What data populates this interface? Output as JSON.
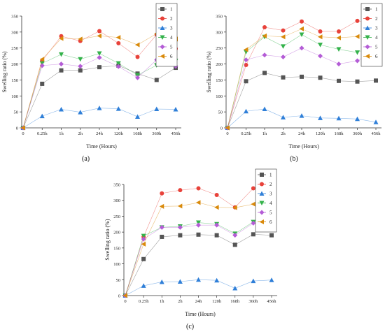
{
  "figure": {
    "x_ticks": [
      "0",
      "0.25h",
      "1h",
      "2h",
      "24h",
      "120h",
      "168h",
      "360h",
      "456h"
    ]
  },
  "chart_data": [
    {
      "type": "line",
      "panel_label": "(a)",
      "xlabel": "Time (Hours)",
      "ylabel": "Swelling ratio (%)",
      "ylim": [
        0,
        350
      ],
      "yticks": [
        0,
        50,
        100,
        150,
        200,
        250,
        300,
        350
      ],
      "categories": [
        "0",
        "0.25h",
        "1h",
        "2h",
        "24h",
        "120h",
        "168h",
        "360h",
        "456h"
      ],
      "grid": false,
      "legend_position": "top-right",
      "series": [
        {
          "name": "1",
          "color": "#555555",
          "marker": "square",
          "values": [
            0,
            138,
            180,
            180,
            190,
            195,
            170,
            150,
            188
          ]
        },
        {
          "name": "2",
          "color": "#e8423a",
          "marker": "circle",
          "values": [
            0,
            210,
            287,
            272,
            303,
            265,
            222,
            292,
            248
          ]
        },
        {
          "name": "3",
          "color": "#2f7fd8",
          "marker": "triangle-up",
          "values": [
            0,
            37,
            58,
            49,
            62,
            60,
            35,
            59,
            58
          ]
        },
        {
          "name": "4",
          "color": "#33b24a",
          "marker": "triangle-down",
          "values": [
            0,
            202,
            230,
            215,
            233,
            202,
            165,
            196,
            210
          ]
        },
        {
          "name": "5",
          "color": "#b45cd6",
          "marker": "diamond",
          "values": [
            0,
            195,
            200,
            193,
            220,
            192,
            157,
            213,
            193
          ]
        },
        {
          "name": "6",
          "color": "#d98a0b",
          "marker": "triangle-left",
          "values": [
            0,
            215,
            280,
            278,
            288,
            283,
            260,
            295,
            278
          ]
        }
      ]
    },
    {
      "type": "line",
      "panel_label": "(b)",
      "xlabel": "Time (Hours)",
      "ylabel": "Swelling ratio (%)",
      "ylim": [
        0,
        350
      ],
      "yticks": [
        0,
        50,
        100,
        150,
        200,
        250,
        300,
        350
      ],
      "categories": [
        "0",
        "0.25h",
        "1h",
        "2h",
        "24h",
        "120h",
        "168h",
        "360h",
        "456h"
      ],
      "grid": false,
      "legend_position": "top-right",
      "series": [
        {
          "name": "1",
          "color": "#555555",
          "marker": "square",
          "values": [
            0,
            146,
            172,
            158,
            160,
            157,
            147,
            145,
            148
          ]
        },
        {
          "name": "2",
          "color": "#e8423a",
          "marker": "circle",
          "values": [
            0,
            197,
            315,
            305,
            333,
            302,
            302,
            335,
            328
          ]
        },
        {
          "name": "3",
          "color": "#2f7fd8",
          "marker": "triangle-up",
          "values": [
            0,
            52,
            59,
            33,
            38,
            31,
            30,
            28,
            18
          ]
        },
        {
          "name": "4",
          "color": "#33b24a",
          "marker": "triangle-down",
          "values": [
            0,
            238,
            285,
            255,
            292,
            260,
            246,
            236,
            263
          ]
        },
        {
          "name": "5",
          "color": "#b45cd6",
          "marker": "diamond",
          "values": [
            0,
            213,
            228,
            222,
            250,
            225,
            200,
            210,
            243
          ]
        },
        {
          "name": "6",
          "color": "#d98a0b",
          "marker": "triangle-left",
          "values": [
            0,
            245,
            288,
            285,
            310,
            285,
            282,
            286,
            298
          ]
        }
      ]
    },
    {
      "type": "line",
      "panel_label": "(c)",
      "xlabel": "Time (Hours)",
      "ylabel": "Swelling ratio (%)",
      "ylim": [
        0,
        350
      ],
      "yticks": [
        0,
        50,
        100,
        150,
        200,
        250,
        300,
        350
      ],
      "categories": [
        "0",
        "0.25h",
        "1h",
        "2h",
        "24h",
        "120h",
        "168h",
        "360h",
        "456h"
      ],
      "grid": false,
      "legend_position": "top-right",
      "series": [
        {
          "name": "1",
          "color": "#555555",
          "marker": "square",
          "values": [
            0,
            115,
            185,
            190,
            192,
            190,
            160,
            193,
            190
          ]
        },
        {
          "name": "2",
          "color": "#e8423a",
          "marker": "circle",
          "values": [
            0,
            185,
            322,
            332,
            338,
            317,
            278,
            338,
            320
          ]
        },
        {
          "name": "3",
          "color": "#2f7fd8",
          "marker": "triangle-up",
          "values": [
            0,
            31,
            43,
            44,
            50,
            48,
            23,
            46,
            49
          ]
        },
        {
          "name": "4",
          "color": "#33b24a",
          "marker": "triangle-down",
          "values": [
            0,
            188,
            215,
            218,
            230,
            225,
            195,
            232,
            232
          ]
        },
        {
          "name": "5",
          "color": "#b45cd6",
          "marker": "diamond",
          "values": [
            0,
            178,
            215,
            215,
            222,
            222,
            190,
            228,
            228
          ]
        },
        {
          "name": "6",
          "color": "#d98a0b",
          "marker": "triangle-left",
          "values": [
            0,
            162,
            281,
            282,
            293,
            278,
            277,
            288,
            293
          ]
        }
      ]
    }
  ]
}
